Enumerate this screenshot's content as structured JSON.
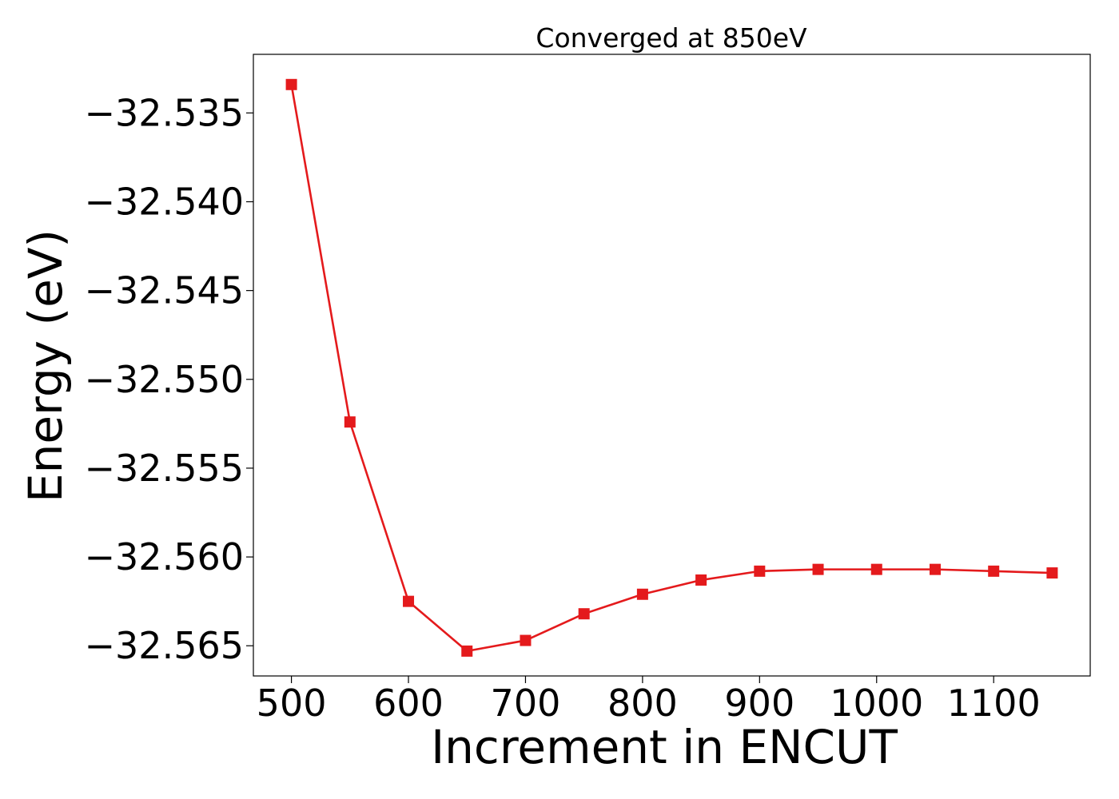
{
  "chart_data": {
    "type": "line",
    "title": "Converged at 850eV",
    "xlabel": "Increment in ENCUT",
    "ylabel": "Energy (eV)",
    "xlim": [
      467.5,
      1182.5
    ],
    "ylim": [
      -32.5667,
      -32.5317
    ],
    "xticks": [
      500,
      600,
      700,
      800,
      900,
      1000,
      1100
    ],
    "xtick_labels": [
      "500",
      "600",
      "700",
      "800",
      "900",
      "1000",
      "1100"
    ],
    "yticks": [
      -32.535,
      -32.54,
      -32.545,
      -32.55,
      -32.555,
      -32.56,
      -32.565
    ],
    "ytick_labels": [
      "−32.535",
      "−32.540",
      "−32.545",
      "−32.550",
      "−32.555",
      "−32.560",
      "−32.565"
    ],
    "grid": false,
    "series": [
      {
        "color": "#e41a1c",
        "marker": "square",
        "x": [
          500,
          550,
          600,
          650,
          700,
          750,
          800,
          850,
          900,
          950,
          1000,
          1050,
          1100,
          1150
        ],
        "y": [
          -32.5334,
          -32.5524,
          -32.5625,
          -32.5653,
          -32.5647,
          -32.5632,
          -32.5621,
          -32.5613,
          -32.5608,
          -32.5607,
          -32.5607,
          -32.5607,
          -32.5608,
          -32.5609
        ]
      }
    ]
  }
}
